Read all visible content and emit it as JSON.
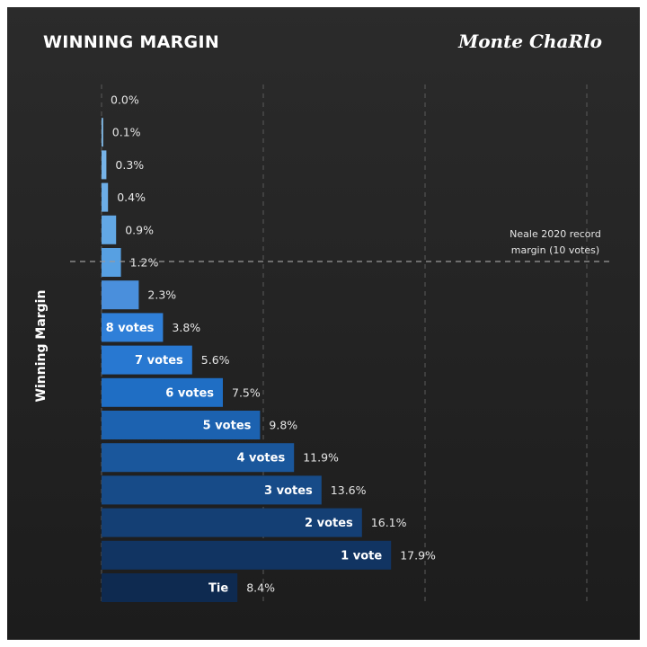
{
  "title": "WINNING MARGIN",
  "brand": "Monte ChaRlo",
  "chart_data": {
    "type": "bar",
    "orientation": "horizontal",
    "title": "WINNING MARGIN",
    "ylabel": "Winning Margin",
    "xlabel": "",
    "categories": [
      "",
      "",
      "",
      "",
      "",
      "",
      "",
      "8 votes",
      "7 votes",
      "6 votes",
      "5 votes",
      "4 votes",
      "3 votes",
      "2 votes",
      "1 vote",
      "Tie"
    ],
    "values": [
      0.0,
      0.1,
      0.3,
      0.4,
      0.9,
      1.2,
      2.3,
      3.8,
      5.6,
      7.5,
      9.8,
      11.9,
      13.6,
      16.1,
      17.9,
      8.4
    ],
    "value_labels": [
      "0.0%",
      "0.1%",
      "0.3%",
      "0.4%",
      "0.9%",
      "1.2%",
      "2.3%",
      "3.8%",
      "5.6%",
      "7.5%",
      "9.8%",
      "11.9%",
      "13.6%",
      "16.1%",
      "17.9%",
      "8.4%"
    ],
    "xlim": [
      0,
      30
    ],
    "grid": true,
    "reference_line": {
      "after_category_index": 5,
      "label_lines": [
        "Neale 2020 record",
        "margin (10 votes)"
      ]
    },
    "colors": {
      "background_top": "#2b2b2b",
      "background_bottom": "#1c1c1c",
      "bars": [
        "#8ec1ea",
        "#82bbea",
        "#76b3e8",
        "#6cade6",
        "#62a7e4",
        "#57a0e2",
        "#4a8fdc",
        "#2f7fd8",
        "#2878d1",
        "#1f6ec4",
        "#1c62b0",
        "#1a579c",
        "#174b88",
        "#143f74",
        "#113462",
        "#0e2a50"
      ]
    }
  }
}
